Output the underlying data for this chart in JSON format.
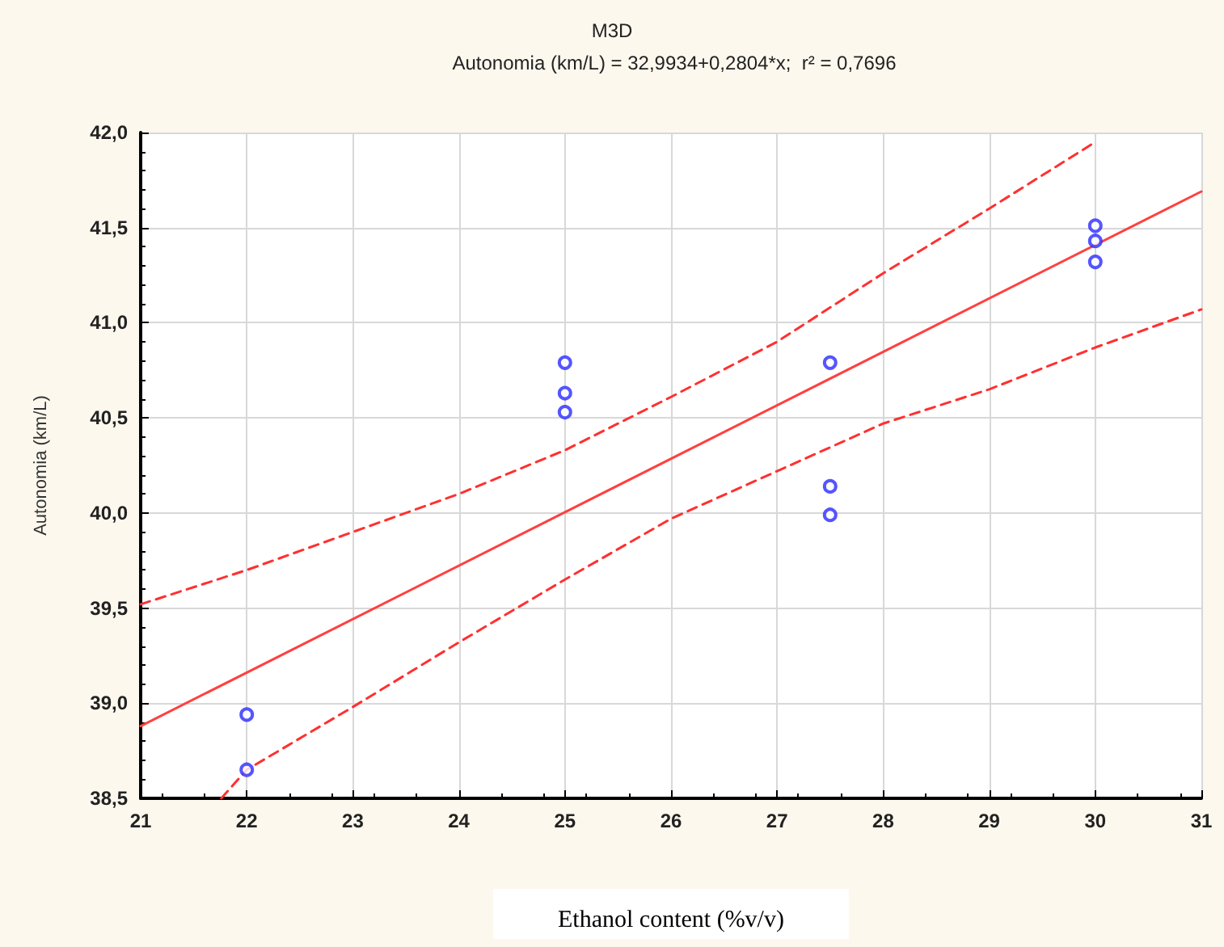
{
  "chart_data": {
    "type": "scatter",
    "title": "M3D",
    "subtitle": "Autonomia (km/L) = 32,9934+0,2804*x;  r² = 0,7696",
    "xlabel": "Ethanol content (%v/v)",
    "ylabel": "Autonomia (km/L)",
    "series": [
      {
        "type": "scatter",
        "color": "#2b2bff",
        "marker": "circle",
        "x": [
          22,
          22,
          25,
          25,
          25,
          27.5,
          27.5,
          27.5,
          30,
          30,
          30
        ],
        "values": [
          38.94,
          38.65,
          40.79,
          40.63,
          40.53,
          40.79,
          40.14,
          39.99,
          41.51,
          41.43,
          41.32
        ]
      },
      {
        "type": "line",
        "color": "#ff4040",
        "marker": "none",
        "line_style": "solid",
        "x": [
          21,
          31
        ],
        "values": [
          38.88,
          41.69
        ]
      },
      {
        "type": "line",
        "color": "#ff3030",
        "marker": "none",
        "line_style": "dashed",
        "x": [
          21,
          22,
          23,
          24,
          25,
          26,
          27,
          27.5,
          28,
          29,
          30
        ],
        "values": [
          39.52,
          39.7,
          39.9,
          40.1,
          40.33,
          40.61,
          40.9,
          41.08,
          41.26,
          41.6,
          41.95
        ]
      },
      {
        "type": "line",
        "color": "#ff3030",
        "marker": "none",
        "line_style": "dashed",
        "x": [
          21.76,
          22,
          23,
          24,
          25,
          26,
          27,
          28,
          29,
          30,
          31
        ],
        "values": [
          38.5,
          38.65,
          38.98,
          39.32,
          39.65,
          39.97,
          40.22,
          40.47,
          40.65,
          40.87,
          41.07
        ]
      }
    ],
    "xlim": [
      21,
      31
    ],
    "xticks": [
      21,
      22,
      23,
      24,
      25,
      26,
      27,
      28,
      29,
      30,
      31
    ],
    "ylim": [
      38.5,
      42
    ],
    "yticks": [
      {
        "value": 38.5,
        "label": "38,5"
      },
      {
        "value": 39,
        "label": "39,0"
      },
      {
        "value": 39.5,
        "label": "39,5"
      },
      {
        "value": 40,
        "label": "40,0"
      },
      {
        "value": 40.5,
        "label": "40,5"
      },
      {
        "value": 41,
        "label": "41,0"
      },
      {
        "value": 41.5,
        "label": "41,5"
      },
      {
        "value": 42,
        "label": "42,0"
      }
    ],
    "grid": true
  }
}
